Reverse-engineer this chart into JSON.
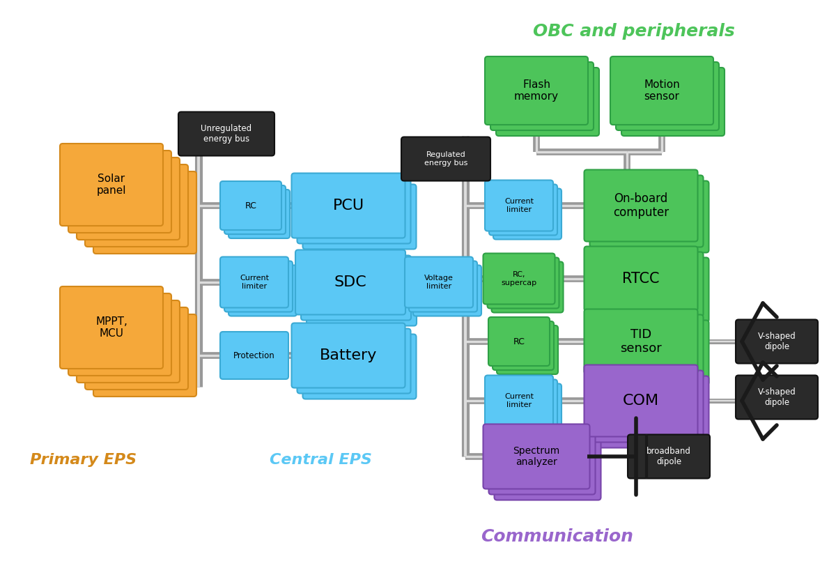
{
  "fig_width": 12.0,
  "fig_height": 8.15,
  "bg_color": "#ffffff",
  "orange_color": "#F5A83A",
  "orange_dark": "#D4891A",
  "blue_color": "#5BC8F5",
  "blue_dark": "#3BAAD4",
  "green_color": "#4DC45A",
  "green_dark": "#2EA045",
  "purple_color": "#9966CC",
  "purple_dark": "#7744AA",
  "black_color": "#2C2C2C",
  "label_primary": "Primary EPS",
  "label_central": "Central EPS",
  "label_obc": "OBC and peripherals",
  "label_comm": "Communication",
  "label_primary_color": "#D4891A",
  "label_central_color": "#5BC8F5",
  "label_obc_color": "#4DC45A",
  "label_comm_color": "#9966CC"
}
